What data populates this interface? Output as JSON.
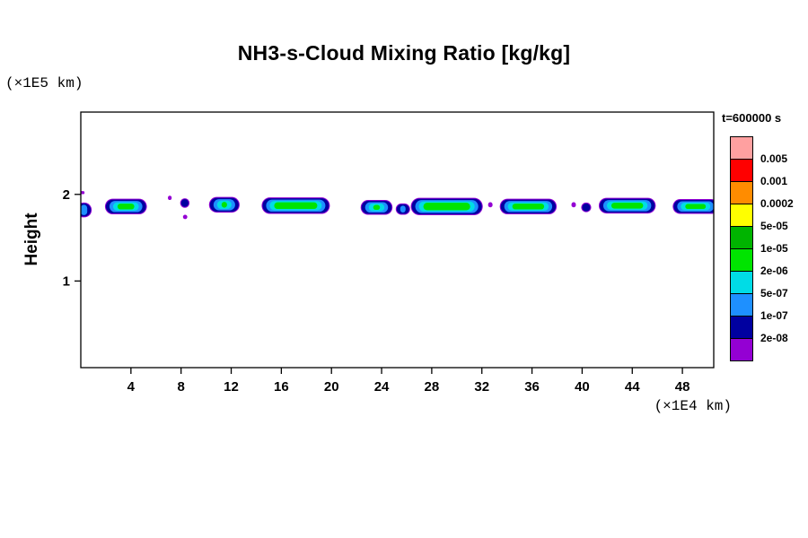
{
  "chart": {
    "title": "NH3-s-Cloud Mixing Ratio [kg/kg]",
    "y_unit_label": "(×1E5 km)",
    "x_unit_label": "(×1E4 km)",
    "y_axis_title": "Height",
    "time_label": "t=600000 s"
  },
  "chart_data": {
    "type": "heatmap",
    "title": "NH3-s-Cloud Mixing Ratio [kg/kg]",
    "xlabel": "(×1E4 km)",
    "ylabel": "Height",
    "y_unit": "(×1E5 km)",
    "time_label": "t=600000 s",
    "xlim": [
      0,
      50.5
    ],
    "ylim": [
      0,
      2.95
    ],
    "x_ticks": [
      4,
      8,
      12,
      16,
      20,
      24,
      28,
      32,
      36,
      40,
      44,
      48
    ],
    "y_ticks": [
      1,
      2
    ],
    "grid": false,
    "legend": {
      "position": "right",
      "labels": [
        "0.005",
        "0.001",
        "0.0002",
        "5e-05",
        "1e-05",
        "2e-06",
        "5e-07",
        "1e-07",
        "2e-08"
      ],
      "colors": [
        "#FFA0A0",
        "#FF0000",
        "#FF8C00",
        "#FFFF00",
        "#00B400",
        "#00E400",
        "#00DCE6",
        "#1E90FF",
        "#0000A0",
        "#9400D3"
      ]
    },
    "cloud_segments": [
      {
        "x1": -0.3,
        "x2": 0.8,
        "y": 1.82,
        "t": 0.15,
        "level": "full"
      },
      {
        "x1": -0.15,
        "x2": 0.3,
        "y": 2.02,
        "t": 0.035,
        "level": "speck"
      },
      {
        "x1": 2.0,
        "x2": 5.2,
        "y": 1.86,
        "t": 0.16,
        "level": "full"
      },
      {
        "x1": 6.95,
        "x2": 7.25,
        "y": 1.96,
        "t": 0.05,
        "level": "speck"
      },
      {
        "x1": 8.0,
        "x2": 8.6,
        "y": 1.9,
        "t": 0.09,
        "level": "mid"
      },
      {
        "x1": 8.15,
        "x2": 8.5,
        "y": 1.74,
        "t": 0.05,
        "level": "speck"
      },
      {
        "x1": 10.3,
        "x2": 12.6,
        "y": 1.88,
        "t": 0.16,
        "level": "full"
      },
      {
        "x1": 14.5,
        "x2": 19.8,
        "y": 1.87,
        "t": 0.17,
        "level": "full"
      },
      {
        "x1": 22.4,
        "x2": 24.8,
        "y": 1.85,
        "t": 0.15,
        "level": "full"
      },
      {
        "x1": 25.2,
        "x2": 26.2,
        "y": 1.83,
        "t": 0.11,
        "level": "mid"
      },
      {
        "x1": 26.4,
        "x2": 32.0,
        "y": 1.86,
        "t": 0.18,
        "level": "full"
      },
      {
        "x1": 32.5,
        "x2": 32.85,
        "y": 1.88,
        "t": 0.06,
        "level": "speck"
      },
      {
        "x1": 33.5,
        "x2": 37.9,
        "y": 1.86,
        "t": 0.16,
        "level": "full"
      },
      {
        "x1": 39.15,
        "x2": 39.5,
        "y": 1.88,
        "t": 0.06,
        "level": "speck"
      },
      {
        "x1": 40.0,
        "x2": 40.65,
        "y": 1.85,
        "t": 0.09,
        "level": "mid"
      },
      {
        "x1": 41.4,
        "x2": 45.8,
        "y": 1.87,
        "t": 0.16,
        "level": "full"
      },
      {
        "x1": 47.3,
        "x2": 50.8,
        "y": 1.86,
        "t": 0.15,
        "level": "full"
      }
    ]
  }
}
